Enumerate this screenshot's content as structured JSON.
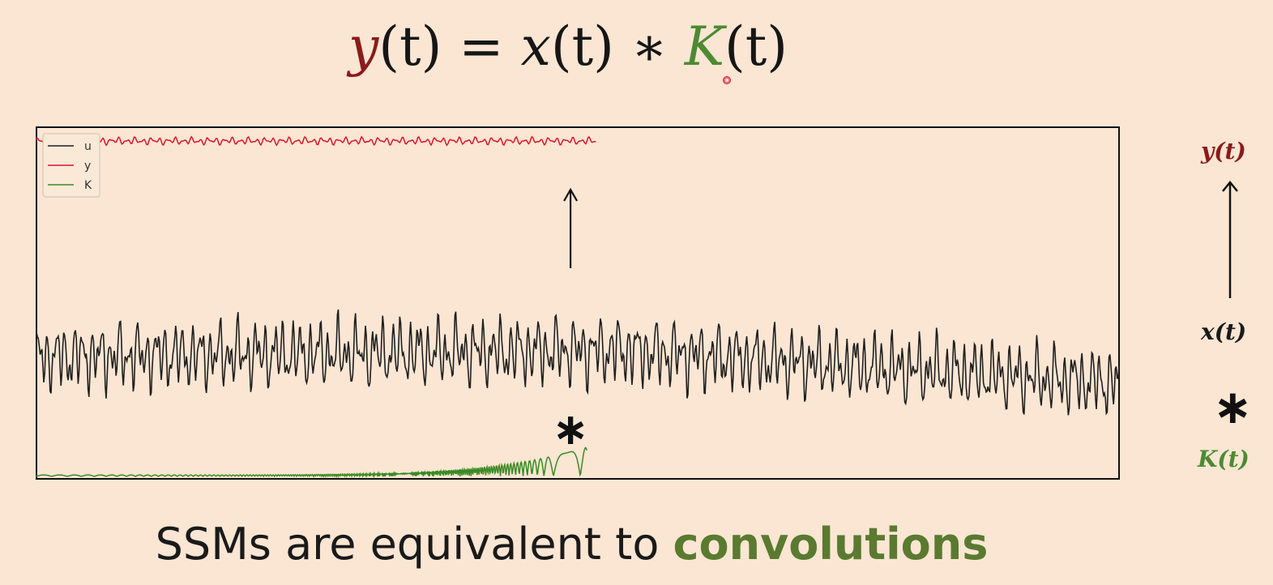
{
  "formula": {
    "lhs": "y",
    "t1": "(t)",
    "eq": " = ",
    "x": "x",
    "t2": "(t)",
    "op": " ∗ ",
    "k": "K",
    "t3": "(t)"
  },
  "side_labels": {
    "y": "y(t)",
    "x": "x(t)",
    "star": "∗",
    "k": "K(t)"
  },
  "caption": {
    "text": "SSMs are equivalent to ",
    "highlight": "convolutions"
  },
  "plot_star": "∗",
  "colors": {
    "u": "#1f1f1f",
    "y": "#e0142a",
    "K": "#3a8a24",
    "side_y": "#8b1a1a",
    "side_k": "#4d8a32",
    "background": "#fae6d3"
  },
  "chart_data": {
    "type": "line",
    "legend": {
      "placement": "top-left",
      "entries": [
        "u",
        "y",
        "K"
      ]
    },
    "grid": false,
    "axes_visible": false,
    "xlim": [
      0,
      600
    ],
    "series": [
      {
        "name": "u",
        "x_range": [
          0,
          600
        ],
        "trend": [
          [
            0,
            0.1
          ],
          [
            320,
            0.25
          ],
          [
            600,
            -0.5
          ]
        ],
        "amplitude": 0.9
      },
      {
        "name": "y",
        "x_range": [
          0,
          310
        ],
        "level": 0.0,
        "amplitude": 0.6
      },
      {
        "name": "K",
        "x_range": [
          0,
          305
        ],
        "envelope": "growing",
        "peak_at": 305
      }
    ],
    "annotations": [
      "upward arrow from u to y at x≈296",
      "∗ above K peak at x≈296"
    ]
  }
}
